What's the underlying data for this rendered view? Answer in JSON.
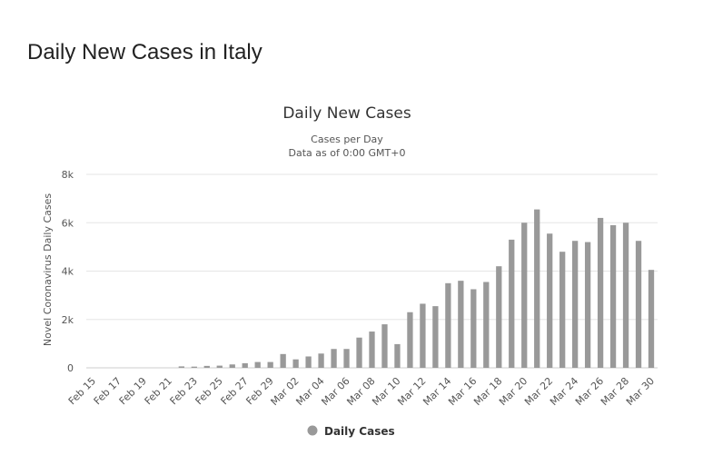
{
  "page": {
    "title": "Daily New Cases in Italy"
  },
  "chart_data": {
    "type": "bar",
    "title": "Daily New Cases",
    "subtitle_lines": [
      "Cases per Day",
      "Data as of 0:00 GMT+0"
    ],
    "xlabel": "",
    "ylabel": "Novel Coronavirus Daily Cases",
    "ylim": [
      0,
      8000
    ],
    "yticks": [
      0,
      2000,
      4000,
      6000,
      8000
    ],
    "ytick_labels": [
      "0",
      "2k",
      "4k",
      "6k",
      "8k"
    ],
    "grid": true,
    "legend_position": "bottom",
    "categories": [
      "Feb 15",
      "Feb 16",
      "Feb 17",
      "Feb 18",
      "Feb 19",
      "Feb 20",
      "Feb 21",
      "Feb 22",
      "Feb 23",
      "Feb 24",
      "Feb 25",
      "Feb 26",
      "Feb 27",
      "Feb 28",
      "Feb 29",
      "Mar 01",
      "Mar 02",
      "Mar 03",
      "Mar 04",
      "Mar 05",
      "Mar 06",
      "Mar 07",
      "Mar 08",
      "Mar 09",
      "Mar 10",
      "Mar 11",
      "Mar 12",
      "Mar 13",
      "Mar 14",
      "Mar 15",
      "Mar 16",
      "Mar 17",
      "Mar 18",
      "Mar 19",
      "Mar 20",
      "Mar 21",
      "Mar 22",
      "Mar 23",
      "Mar 24",
      "Mar 25",
      "Mar 26",
      "Mar 27",
      "Mar 28",
      "Mar 29",
      "Mar 30"
    ],
    "tick_labels_shown": [
      "Feb 15",
      "Feb 17",
      "Feb 19",
      "Feb 21",
      "Feb 23",
      "Feb 25",
      "Feb 27",
      "Feb 29",
      "Mar 02",
      "Mar 04",
      "Mar 06",
      "Mar 08",
      "Mar 10",
      "Mar 12",
      "Mar 14",
      "Mar 16",
      "Mar 18",
      "Mar 20",
      "Mar 22",
      "Mar 24",
      "Mar 26",
      "Mar 28",
      "Mar 30"
    ],
    "series": [
      {
        "name": "Daily Cases",
        "color": "#999999",
        "values": [
          0,
          0,
          0,
          0,
          0,
          0,
          0,
          60,
          50,
          80,
          90,
          140,
          190,
          240,
          240,
          570,
          350,
          470,
          590,
          780,
          780,
          1250,
          1500,
          1800,
          980,
          2300,
          2650,
          2550,
          3500,
          3600,
          3250,
          3550,
          4200,
          5300,
          6000,
          6550,
          5550,
          4800,
          5250,
          5200,
          6200,
          5900,
          6000,
          5250,
          4050
        ]
      }
    ]
  }
}
